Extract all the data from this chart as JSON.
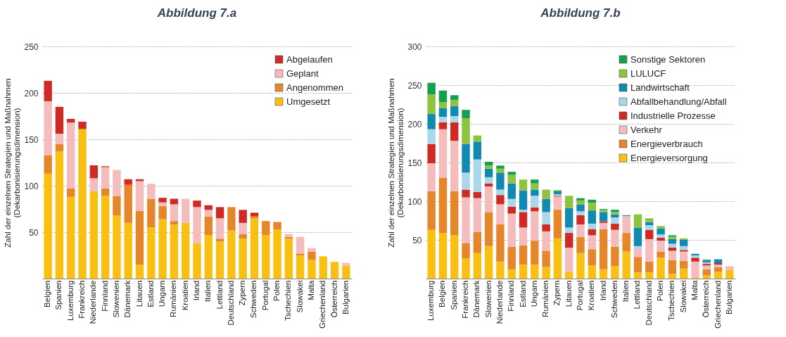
{
  "chart_data": [
    {
      "type": "bar",
      "title": "Abbildung 7.a",
      "ylabel": "Zahl der einzelnen Strategien und Maßnahmen (Dekarbonisierungsdimension)",
      "stacked": true,
      "grid": "y",
      "legend": "top right",
      "ylim": [
        0,
        250
      ],
      "yticks": [
        50,
        100,
        150,
        200,
        250
      ],
      "categories": [
        "Belgien",
        "Spanien",
        "Luxemburg",
        "Frankreich",
        "Niederlande",
        "Finnland",
        "Slowenien",
        "Dänemark",
        "Litauen",
        "Estland",
        "Ungarn",
        "Rumänien",
        "Kroatien",
        "Irland",
        "Italien",
        "Lettland",
        "Deutschland",
        "Zypern",
        "Schweden",
        "Portugal",
        "Polen",
        "Tschechien",
        "Slowakei",
        "Malta",
        "Griechenland",
        "Österreich",
        "Bulgarien"
      ],
      "series": [
        {
          "name": "Umgesetzt",
          "color": "#f9c013",
          "values": [
            113,
            137,
            88,
            161,
            94,
            89,
            68,
            60,
            15,
            55,
            64,
            58,
            60,
            38,
            47,
            40,
            52,
            43,
            65,
            47,
            53,
            43,
            25,
            20,
            24,
            18,
            14
          ]
        },
        {
          "name": "Angenommen",
          "color": "#e6862a",
          "values": [
            20,
            8,
            9,
            0,
            0,
            8,
            21,
            41,
            58,
            31,
            14,
            4,
            0,
            0,
            20,
            3,
            25,
            5,
            2,
            15,
            8,
            2,
            2,
            9,
            0,
            0,
            0
          ]
        },
        {
          "name": "Geplant",
          "color": "#f4bcbc",
          "values": [
            58,
            11,
            71,
            0,
            14,
            23,
            28,
            null,
            32,
            16,
            4,
            18,
            26,
            39,
            7,
            22,
            0,
            12,
            0,
            0,
            0,
            3,
            18,
            4,
            0,
            0,
            3
          ]
        },
        {
          "name": "Abgelaufen",
          "color": "#d02a25",
          "values": [
            22,
            29,
            4,
            8,
            14,
            1,
            0,
            6,
            2,
            0,
            5,
            6,
            0,
            7,
            5,
            12,
            0,
            14,
            4,
            0,
            0,
            0,
            0,
            0,
            0,
            0,
            0
          ]
        }
      ]
    },
    {
      "type": "bar",
      "title": "Abbildung 7.b",
      "ylabel": "Zahl der einzelnen Strategien und Maßnahmen (Dekarbonisierungsdimension)",
      "stacked": true,
      "grid": "y",
      "legend": "top right",
      "ylim": [
        0,
        300
      ],
      "yticks": [
        50,
        100,
        150,
        200,
        250,
        300
      ],
      "categories": [
        "Luxemburg",
        "Belgien",
        "Spanien",
        "Frankreich",
        "Dänemark",
        "Slowenien",
        "Niederlande",
        "Finnland",
        "Estland",
        "Ungarn",
        "Rumänien",
        "Zypern",
        "Litauen",
        "Portugal",
        "Kroatien",
        "Irland",
        "Schweden",
        "Italien",
        "Lettland",
        "Deutschland",
        "Polen",
        "Tschechien",
        "Slowakei",
        "Malta",
        "Österreich",
        "Griechenland",
        "Bulgarien"
      ],
      "series": [
        {
          "name": "Energieversorgung",
          "color": "#f9c013",
          "values": [
            63,
            59,
            56,
            26,
            33,
            42,
            22,
            12,
            18,
            18,
            15,
            52,
            9,
            33,
            17,
            12,
            16,
            35,
            8,
            8,
            27,
            6,
            13,
            1,
            4,
            9,
            11
          ]
        },
        {
          "name": "Energieverbrauch",
          "color": "#e6862a",
          "values": [
            50,
            71,
            57,
            20,
            27,
            44,
            48,
            29,
            25,
            31,
            21,
            37,
            0,
            21,
            21,
            52,
            25,
            24,
            20,
            14,
            8,
            18,
            10,
            0,
            8,
            6,
            0
          ]
        },
        {
          "name": "Verkehr",
          "color": "#f4bcbc",
          "values": [
            36,
            63,
            65,
            59,
            44,
            33,
            26,
            43,
            23,
            38,
            25,
            17,
            31,
            16,
            18,
            8,
            22,
            22,
            11,
            29,
            14,
            12,
            12,
            21,
            5,
            3,
            5
          ]
        },
        {
          "name": "Industrielle Prozesse",
          "color": "#d02a25",
          "values": [
            25,
            9,
            24,
            10,
            8,
            4,
            12,
            9,
            20,
            5,
            9,
            1,
            19,
            12,
            8,
            2,
            8,
            0,
            0,
            12,
            4,
            4,
            2,
            5,
            2,
            2,
            0
          ]
        },
        {
          "name": "Abfallbehandlung/Abfall",
          "color": "#a8d8ea",
          "values": [
            19,
            7,
            8,
            22,
            42,
            8,
            7,
            10,
            3,
            15,
            16,
            2,
            7,
            5,
            7,
            null,
            8,
            null,
            3,
            6,
            4,
            5,
            5,
            3,
            2,
            0,
            0
          ]
        },
        {
          "name": "Landwirtschaft",
          "color": "#1189b1",
          "values": [
            20,
            11,
            13,
            37,
            23,
            11,
            22,
            20,
            25,
            8,
            17,
            3,
            25,
            9,
            17,
            12,
            4,
            1,
            24,
            4,
            8,
            6,
            8,
            2,
            3,
            5,
            0
          ]
        },
        {
          "name": "LULUCF",
          "color": "#8cc43f",
          "values": [
            25,
            8,
            8,
            33,
            8,
            4,
            5,
            11,
            14,
            8,
            12,
            0,
            16,
            5,
            10,
            3,
            3,
            0,
            17,
            5,
            3,
            3,
            2,
            0,
            1,
            0,
            0
          ]
        },
        {
          "name": "Sonstige Sektoren",
          "color": "#13a14b",
          "values": [
            15,
            15,
            6,
            11,
            0,
            5,
            4,
            4,
            0,
            5,
            0,
            2,
            0,
            3,
            4,
            1,
            3,
            0,
            0,
            0,
            0,
            2,
            0,
            0,
            0,
            0,
            0
          ]
        }
      ]
    }
  ]
}
